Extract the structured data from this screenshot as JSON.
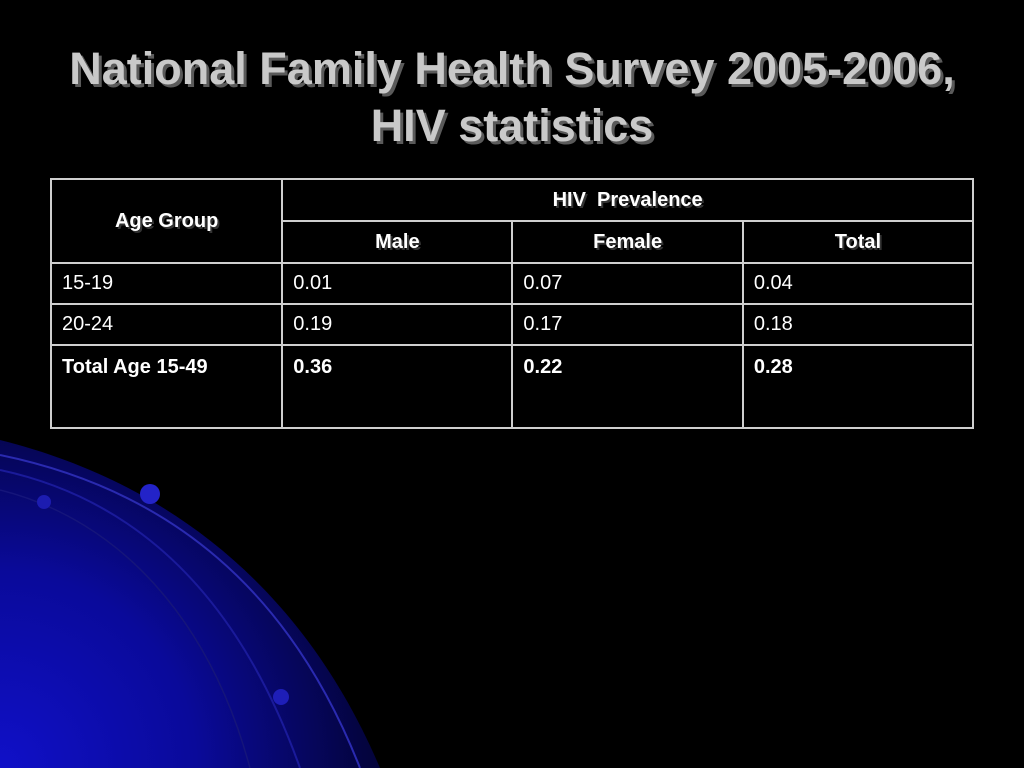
{
  "slide": {
    "title": "National Family Health Survey 2005-2006, HIV statistics"
  },
  "table": {
    "header_age_group": "Age Group",
    "header_prevalence": "HIV  Prevalence",
    "sub_headers": [
      "Male",
      "Female",
      "Total"
    ],
    "rows": [
      {
        "age_group": "15-19",
        "male": "0.01",
        "female": "0.07",
        "total": "0.04"
      },
      {
        "age_group": "20-24",
        "male": "0.19",
        "female": "0.17",
        "total": "0.18"
      },
      {
        "age_group": "Total Age 15-49",
        "male": "0.36",
        "female": "0.22",
        "total": "0.28"
      }
    ]
  },
  "colors": {
    "background": "#000000",
    "title": "#c9c9c9",
    "text": "#ffffff",
    "table_border": "#cfcfcf",
    "accent_blue": "#0a0ab4"
  }
}
